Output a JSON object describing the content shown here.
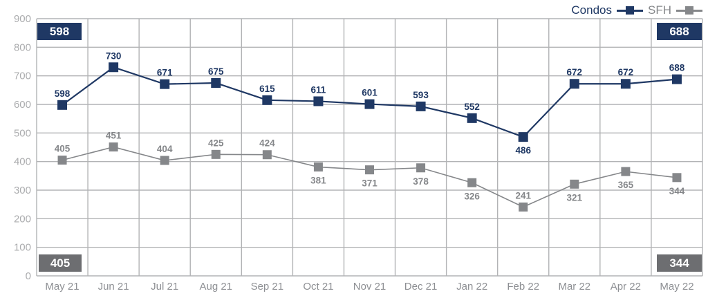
{
  "legend": {
    "condos_label": "Condos",
    "sfh_label": "SFH"
  },
  "callouts": {
    "top_left": "598",
    "top_right": "688",
    "bottom_left": "405",
    "bottom_right": "344"
  },
  "colors": {
    "condos": "#1f3864",
    "sfh": "#85878a",
    "badge_navy": "#1f3864",
    "badge_gray": "#6d6e71",
    "gridline": "#b2b3b5",
    "y_tick_text": "#abacae",
    "x_tick_text": "#8d8f93"
  },
  "chart_data": {
    "type": "line",
    "categories": [
      "May 21",
      "Jun 21",
      "Jul 21",
      "Aug 21",
      "Sep 21",
      "Oct 21",
      "Nov 21",
      "Dec 21",
      "Jan 22",
      "Feb 22",
      "Mar 22",
      "Apr 22",
      "May 22"
    ],
    "series": [
      {
        "name": "Condos",
        "color": "#1f3864",
        "values": [
          598,
          730,
          671,
          675,
          615,
          611,
          601,
          593,
          552,
          486,
          672,
          672,
          688
        ],
        "label_side": [
          "above",
          "above",
          "above",
          "above",
          "above",
          "above",
          "above",
          "above",
          "above",
          "below",
          "above",
          "above",
          "above"
        ]
      },
      {
        "name": "SFH",
        "color": "#85878a",
        "values": [
          405,
          451,
          404,
          425,
          424,
          381,
          371,
          378,
          326,
          241,
          321,
          365,
          344
        ],
        "label_side": [
          "above",
          "above",
          "above",
          "above",
          "above",
          "below",
          "below",
          "below",
          "below",
          "above",
          "below",
          "below",
          "below"
        ]
      }
    ],
    "title": "",
    "xlabel": "",
    "ylabel": "",
    "ylim": [
      0,
      900
    ],
    "ytick_step": 100,
    "grid": true,
    "legend_position": "top-right"
  }
}
